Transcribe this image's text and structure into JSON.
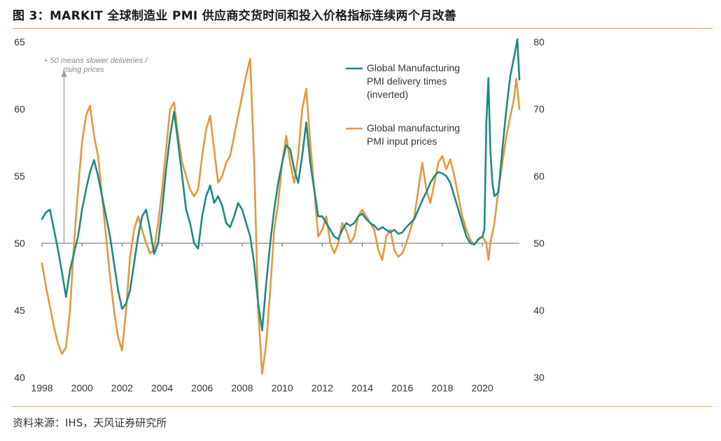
{
  "figure": {
    "title": "图 3：MARKIT 全球制造业 PMI 供应商交货时间和投入价格指标连续两个月改善",
    "source": "资料来源：IHS，天风证券研究所"
  },
  "colors": {
    "delivery": "#1b8a86",
    "prices": "#e8953d",
    "rule": "#e7a646",
    "arrow": "#999999"
  },
  "chart_data": {
    "type": "line",
    "annotation": [
      "+ 50 means slower deliveries /",
      "rising prices"
    ],
    "x_ticks": [
      "1998",
      "2000",
      "2002",
      "2004",
      "2006",
      "2008",
      "2010",
      "2012",
      "2014",
      "2016",
      "2018",
      "2020"
    ],
    "xlim": [
      1998,
      2021.85
    ],
    "left_axis": {
      "ylim": [
        40,
        65
      ],
      "ticks": [
        40,
        45,
        50,
        55,
        60,
        65
      ]
    },
    "right_axis": {
      "ylim": [
        30,
        80
      ],
      "ticks": [
        30,
        40,
        50,
        60,
        70,
        80
      ]
    },
    "legend": {
      "delivery": [
        "Global Manufacturing",
        "PMI delivery times",
        "(inverted)"
      ],
      "prices": [
        "Global manufacturing",
        "PMI input prices"
      ]
    },
    "series": [
      {
        "name": "Global Manufacturing PMI delivery times (inverted)",
        "axis": "left",
        "points": [
          [
            1998.0,
            51.8
          ],
          [
            1998.2,
            52.3
          ],
          [
            1998.4,
            52.5
          ],
          [
            1998.6,
            51.0
          ],
          [
            1998.8,
            49.5
          ],
          [
            1999.0,
            47.8
          ],
          [
            1999.2,
            46.0
          ],
          [
            1999.4,
            48.0
          ],
          [
            1999.6,
            49.3
          ],
          [
            1999.8,
            50.5
          ],
          [
            2000.0,
            52.5
          ],
          [
            2000.2,
            54.0
          ],
          [
            2000.4,
            55.3
          ],
          [
            2000.6,
            56.2
          ],
          [
            2000.8,
            55.0
          ],
          [
            2001.0,
            53.5
          ],
          [
            2001.2,
            52.0
          ],
          [
            2001.4,
            50.5
          ],
          [
            2001.6,
            48.5
          ],
          [
            2001.8,
            46.5
          ],
          [
            2002.0,
            45.1
          ],
          [
            2002.2,
            45.5
          ],
          [
            2002.4,
            46.5
          ],
          [
            2002.6,
            48.5
          ],
          [
            2002.8,
            50.5
          ],
          [
            2003.0,
            52.0
          ],
          [
            2003.2,
            52.5
          ],
          [
            2003.4,
            51.0
          ],
          [
            2003.6,
            49.2
          ],
          [
            2003.8,
            50.0
          ],
          [
            2004.0,
            52.5
          ],
          [
            2004.2,
            55.5
          ],
          [
            2004.4,
            58.0
          ],
          [
            2004.6,
            59.8
          ],
          [
            2004.8,
            57.5
          ],
          [
            2005.0,
            55.0
          ],
          [
            2005.2,
            52.5
          ],
          [
            2005.4,
            51.5
          ],
          [
            2005.6,
            50.0
          ],
          [
            2005.8,
            49.6
          ],
          [
            2006.0,
            52.0
          ],
          [
            2006.2,
            53.5
          ],
          [
            2006.4,
            54.3
          ],
          [
            2006.6,
            53.0
          ],
          [
            2006.8,
            53.5
          ],
          [
            2007.0,
            52.8
          ],
          [
            2007.2,
            51.5
          ],
          [
            2007.4,
            51.2
          ],
          [
            2007.6,
            52.0
          ],
          [
            2007.8,
            53.0
          ],
          [
            2008.0,
            52.5
          ],
          [
            2008.2,
            51.5
          ],
          [
            2008.4,
            50.5
          ],
          [
            2008.6,
            48.5
          ],
          [
            2008.8,
            45.5
          ],
          [
            2009.0,
            43.5
          ],
          [
            2009.2,
            47.0
          ],
          [
            2009.4,
            50.0
          ],
          [
            2009.6,
            52.5
          ],
          [
            2009.8,
            54.5
          ],
          [
            2010.0,
            56.0
          ],
          [
            2010.2,
            57.3
          ],
          [
            2010.4,
            57.0
          ],
          [
            2010.6,
            55.5
          ],
          [
            2010.8,
            54.5
          ],
          [
            2011.0,
            56.5
          ],
          [
            2011.2,
            59.0
          ],
          [
            2011.4,
            56.0
          ],
          [
            2011.6,
            54.0
          ],
          [
            2011.8,
            52.0
          ],
          [
            2012.0,
            52.0
          ],
          [
            2012.2,
            51.5
          ],
          [
            2012.4,
            51.0
          ],
          [
            2012.6,
            50.5
          ],
          [
            2012.8,
            50.3
          ],
          [
            2013.0,
            51.0
          ],
          [
            2013.2,
            51.5
          ],
          [
            2013.4,
            51.3
          ],
          [
            2013.6,
            51.5
          ],
          [
            2013.8,
            52.0
          ],
          [
            2014.0,
            52.2
          ],
          [
            2014.2,
            51.8
          ],
          [
            2014.4,
            51.5
          ],
          [
            2014.6,
            51.3
          ],
          [
            2014.8,
            51.0
          ],
          [
            2015.0,
            51.2
          ],
          [
            2015.2,
            51.0
          ],
          [
            2015.4,
            50.8
          ],
          [
            2015.6,
            51.0
          ],
          [
            2015.8,
            50.7
          ],
          [
            2016.0,
            50.8
          ],
          [
            2016.2,
            51.2
          ],
          [
            2016.4,
            51.5
          ],
          [
            2016.6,
            51.8
          ],
          [
            2016.8,
            52.5
          ],
          [
            2017.0,
            53.2
          ],
          [
            2017.2,
            53.8
          ],
          [
            2017.4,
            54.5
          ],
          [
            2017.6,
            55.0
          ],
          [
            2017.8,
            55.3
          ],
          [
            2018.0,
            55.2
          ],
          [
            2018.2,
            55.0
          ],
          [
            2018.4,
            54.5
          ],
          [
            2018.6,
            53.5
          ],
          [
            2018.8,
            52.5
          ],
          [
            2019.0,
            51.5
          ],
          [
            2019.2,
            50.5
          ],
          [
            2019.4,
            50.0
          ],
          [
            2019.6,
            49.9
          ],
          [
            2019.8,
            50.3
          ],
          [
            2020.0,
            50.5
          ],
          [
            2020.1,
            51.0
          ],
          [
            2020.2,
            59.0
          ],
          [
            2020.3,
            62.3
          ],
          [
            2020.4,
            57.0
          ],
          [
            2020.5,
            54.5
          ],
          [
            2020.6,
            53.5
          ],
          [
            2020.8,
            53.8
          ],
          [
            2021.0,
            57.0
          ],
          [
            2021.2,
            60.0
          ],
          [
            2021.4,
            62.5
          ],
          [
            2021.6,
            64.0
          ],
          [
            2021.75,
            65.2
          ],
          [
            2021.85,
            62.2
          ]
        ]
      },
      {
        "name": "Global manufacturing PMI input prices",
        "axis": "right",
        "points": [
          [
            1998.0,
            47.0
          ],
          [
            1998.2,
            43.5
          ],
          [
            1998.4,
            40.5
          ],
          [
            1998.6,
            37.5
          ],
          [
            1998.8,
            35.0
          ],
          [
            1999.0,
            33.5
          ],
          [
            1999.2,
            34.5
          ],
          [
            1999.4,
            40.0
          ],
          [
            1999.6,
            50.0
          ],
          [
            1999.8,
            58.0
          ],
          [
            2000.0,
            65.0
          ],
          [
            2000.2,
            69.0
          ],
          [
            2000.4,
            70.5
          ],
          [
            2000.6,
            66.0
          ],
          [
            2000.8,
            63.0
          ],
          [
            2001.0,
            57.0
          ],
          [
            2001.2,
            51.0
          ],
          [
            2001.4,
            45.0
          ],
          [
            2001.6,
            40.0
          ],
          [
            2001.8,
            36.0
          ],
          [
            2002.0,
            34.0
          ],
          [
            2002.2,
            40.0
          ],
          [
            2002.4,
            48.0
          ],
          [
            2002.6,
            52.0
          ],
          [
            2002.8,
            54.0
          ],
          [
            2003.0,
            52.0
          ],
          [
            2003.2,
            50.0
          ],
          [
            2003.4,
            48.5
          ],
          [
            2003.6,
            49.0
          ],
          [
            2003.8,
            53.0
          ],
          [
            2004.0,
            58.0
          ],
          [
            2004.2,
            64.0
          ],
          [
            2004.4,
            70.0
          ],
          [
            2004.6,
            71.0
          ],
          [
            2004.8,
            66.0
          ],
          [
            2005.0,
            62.0
          ],
          [
            2005.2,
            60.0
          ],
          [
            2005.4,
            58.0
          ],
          [
            2005.6,
            57.0
          ],
          [
            2005.8,
            58.0
          ],
          [
            2006.0,
            63.0
          ],
          [
            2006.2,
            67.0
          ],
          [
            2006.4,
            69.0
          ],
          [
            2006.6,
            64.0
          ],
          [
            2006.8,
            59.0
          ],
          [
            2007.0,
            60.0
          ],
          [
            2007.2,
            62.0
          ],
          [
            2007.4,
            63.0
          ],
          [
            2007.6,
            66.0
          ],
          [
            2007.8,
            69.0
          ],
          [
            2008.0,
            72.0
          ],
          [
            2008.2,
            75.0
          ],
          [
            2008.4,
            77.5
          ],
          [
            2008.6,
            62.0
          ],
          [
            2008.8,
            40.0
          ],
          [
            2009.0,
            30.5
          ],
          [
            2009.2,
            35.0
          ],
          [
            2009.4,
            43.0
          ],
          [
            2009.6,
            52.0
          ],
          [
            2009.8,
            56.0
          ],
          [
            2010.0,
            62.0
          ],
          [
            2010.2,
            66.0
          ],
          [
            2010.4,
            62.0
          ],
          [
            2010.6,
            59.0
          ],
          [
            2010.8,
            63.0
          ],
          [
            2011.0,
            70.0
          ],
          [
            2011.2,
            73.0
          ],
          [
            2011.4,
            65.0
          ],
          [
            2011.6,
            58.0
          ],
          [
            2011.8,
            51.0
          ],
          [
            2012.0,
            52.0
          ],
          [
            2012.2,
            54.0
          ],
          [
            2012.4,
            50.0
          ],
          [
            2012.6,
            48.5
          ],
          [
            2012.8,
            50.0
          ],
          [
            2013.0,
            53.0
          ],
          [
            2013.2,
            52.0
          ],
          [
            2013.4,
            50.0
          ],
          [
            2013.6,
            51.0
          ],
          [
            2013.8,
            54.0
          ],
          [
            2014.0,
            55.0
          ],
          [
            2014.2,
            54.0
          ],
          [
            2014.4,
            53.0
          ],
          [
            2014.6,
            52.0
          ],
          [
            2014.8,
            49.0
          ],
          [
            2015.0,
            47.5
          ],
          [
            2015.2,
            51.0
          ],
          [
            2015.4,
            52.0
          ],
          [
            2015.6,
            49.0
          ],
          [
            2015.8,
            48.0
          ],
          [
            2016.0,
            48.5
          ],
          [
            2016.2,
            50.0
          ],
          [
            2016.4,
            52.0
          ],
          [
            2016.6,
            54.0
          ],
          [
            2016.8,
            58.0
          ],
          [
            2017.0,
            62.0
          ],
          [
            2017.2,
            58.0
          ],
          [
            2017.4,
            56.0
          ],
          [
            2017.6,
            59.0
          ],
          [
            2017.8,
            62.0
          ],
          [
            2018.0,
            63.0
          ],
          [
            2018.2,
            61.0
          ],
          [
            2018.4,
            62.5
          ],
          [
            2018.6,
            60.0
          ],
          [
            2018.8,
            57.0
          ],
          [
            2019.0,
            54.0
          ],
          [
            2019.2,
            52.0
          ],
          [
            2019.4,
            50.5
          ],
          [
            2019.6,
            49.8
          ],
          [
            2019.8,
            50.5
          ],
          [
            2020.0,
            51.0
          ],
          [
            2020.2,
            50.0
          ],
          [
            2020.3,
            47.5
          ],
          [
            2020.4,
            50.0
          ],
          [
            2020.6,
            53.0
          ],
          [
            2020.8,
            58.0
          ],
          [
            2021.0,
            62.0
          ],
          [
            2021.2,
            66.0
          ],
          [
            2021.4,
            69.0
          ],
          [
            2021.55,
            71.0
          ],
          [
            2021.7,
            74.5
          ],
          [
            2021.85,
            70.0
          ]
        ]
      }
    ]
  }
}
